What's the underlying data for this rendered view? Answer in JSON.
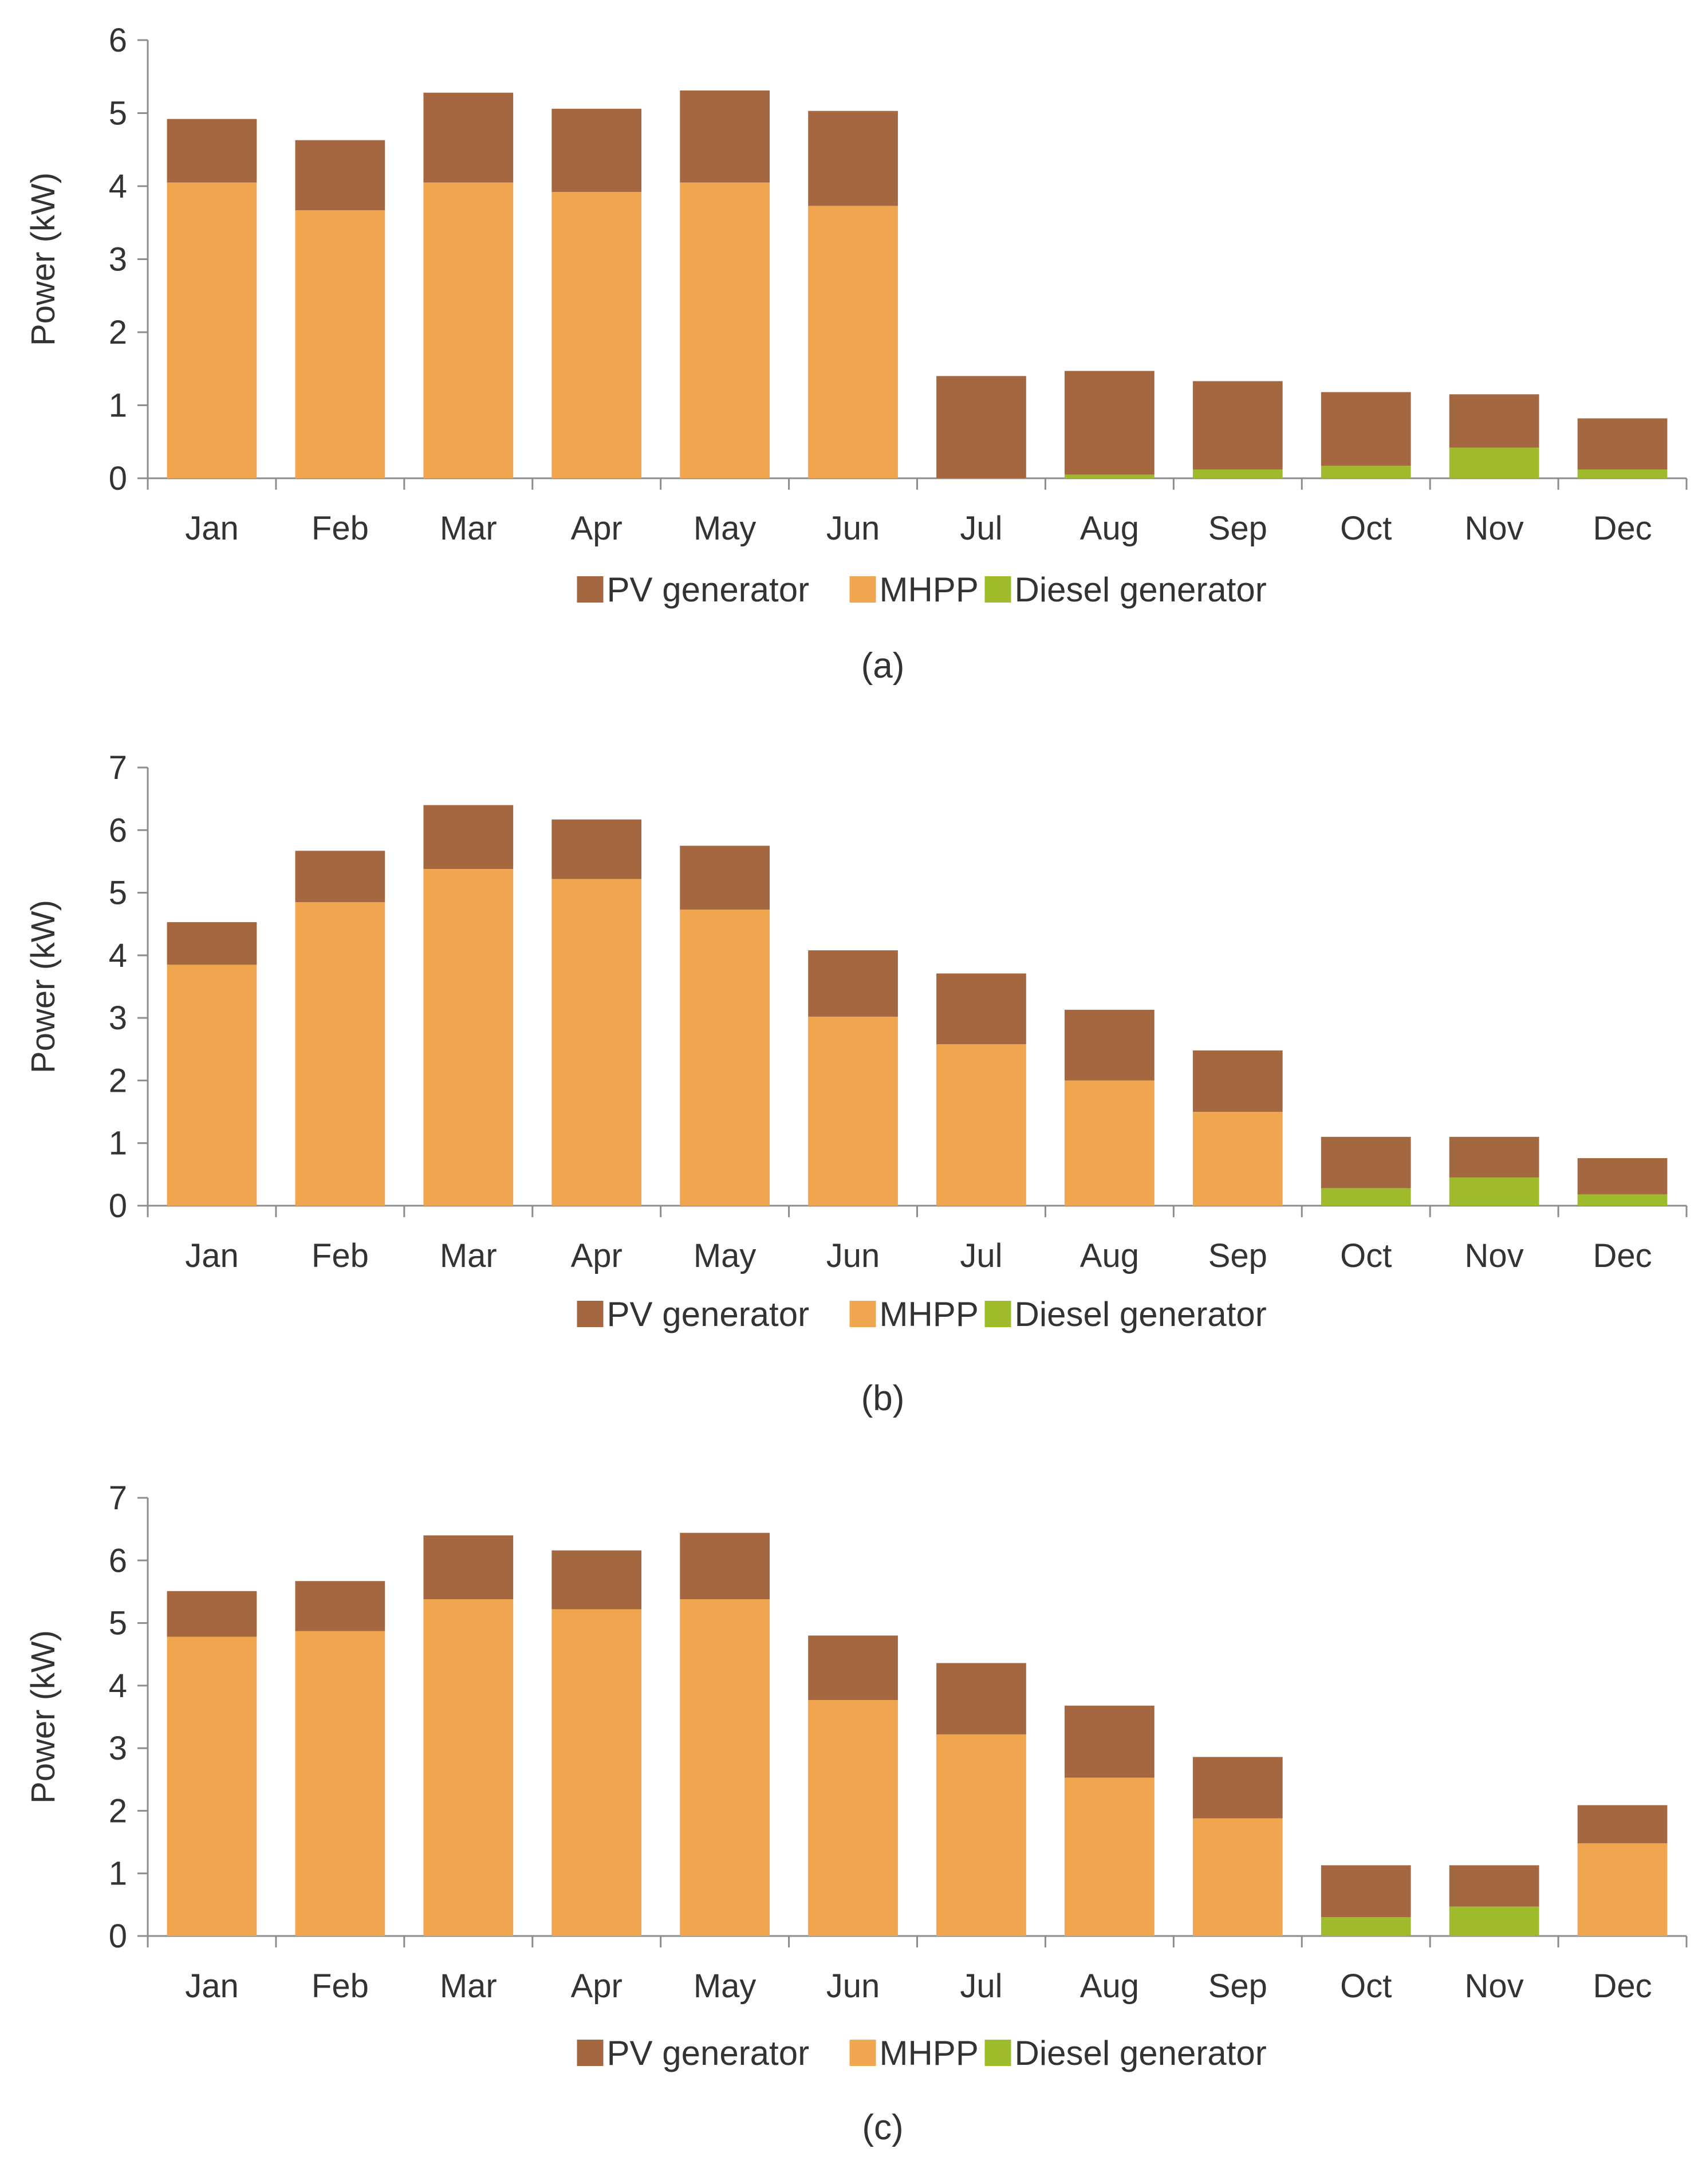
{
  "colors": {
    "pv": "#a5673f",
    "mhpp": "#f0a54f",
    "diesel": "#9dbb2a",
    "axis": "#8c8c8c"
  },
  "chart_data": [
    {
      "type": "bar",
      "stacked": true,
      "caption": "(a)",
      "title": "",
      "xlabel": "",
      "ylabel": "Power (kW)",
      "ylim": [
        0,
        6
      ],
      "yticks": [
        0,
        1,
        2,
        3,
        4,
        5,
        6
      ],
      "categories": [
        "Jan",
        "Feb",
        "Mar",
        "Apr",
        "May",
        "Jun",
        "Jul",
        "Aug",
        "Sep",
        "Oct",
        "Nov",
        "Dec"
      ],
      "legend_position": "bottom",
      "series": [
        {
          "name": "Diesel generator",
          "color_key": "diesel",
          "values": [
            0,
            0,
            0,
            0,
            0,
            0,
            0,
            0.05,
            0.12,
            0.17,
            0.42,
            0.12
          ]
        },
        {
          "name": "MHPP",
          "color_key": "mhpp",
          "values": [
            4.05,
            3.67,
            4.05,
            3.92,
            4.05,
            3.73,
            0,
            0,
            0,
            0,
            0,
            0
          ]
        },
        {
          "name": "PV generator",
          "color_key": "pv",
          "values": [
            0.87,
            0.96,
            1.23,
            1.14,
            1.26,
            1.3,
            1.4,
            1.42,
            1.21,
            1.01,
            0.73,
            0.7
          ]
        }
      ],
      "legend_order": [
        "PV generator",
        "MHPP",
        "Diesel generator"
      ]
    },
    {
      "type": "bar",
      "stacked": true,
      "caption": "(b)",
      "title": "",
      "xlabel": "",
      "ylabel": "Power (kW)",
      "ylim": [
        0,
        7
      ],
      "yticks": [
        0,
        1,
        2,
        3,
        4,
        5,
        6,
        7
      ],
      "categories": [
        "Jan",
        "Feb",
        "Mar",
        "Apr",
        "May",
        "Jun",
        "Jul",
        "Aug",
        "Sep",
        "Oct",
        "Nov",
        "Dec"
      ],
      "legend_position": "bottom",
      "series": [
        {
          "name": "Diesel generator",
          "color_key": "diesel",
          "values": [
            0,
            0,
            0,
            0,
            0,
            0,
            0,
            0,
            0,
            0.28,
            0.45,
            0.18
          ]
        },
        {
          "name": "MHPP",
          "color_key": "mhpp",
          "values": [
            3.85,
            4.85,
            5.38,
            5.22,
            4.73,
            3.02,
            2.58,
            2.0,
            1.5,
            0,
            0,
            0
          ]
        },
        {
          "name": "PV generator",
          "color_key": "pv",
          "values": [
            0.68,
            0.82,
            1.02,
            0.95,
            1.02,
            1.06,
            1.13,
            1.13,
            0.98,
            0.82,
            0.65,
            0.58
          ]
        }
      ],
      "legend_order": [
        "PV generator",
        "MHPP",
        "Diesel generator"
      ]
    },
    {
      "type": "bar",
      "stacked": true,
      "caption": "(c)",
      "title": "",
      "xlabel": "",
      "ylabel": "Power (kW)",
      "ylim": [
        0,
        7
      ],
      "yticks": [
        0,
        1,
        2,
        3,
        4,
        5,
        6,
        7
      ],
      "categories": [
        "Jan",
        "Feb",
        "Mar",
        "Apr",
        "May",
        "Jun",
        "Jul",
        "Aug",
        "Sep",
        "Oct",
        "Nov",
        "Dec"
      ],
      "legend_position": "bottom",
      "series": [
        {
          "name": "Diesel generator",
          "color_key": "diesel",
          "values": [
            0,
            0,
            0,
            0,
            0,
            0,
            0,
            0,
            0,
            0.3,
            0.47,
            0
          ]
        },
        {
          "name": "MHPP",
          "color_key": "mhpp",
          "values": [
            4.78,
            4.87,
            5.38,
            5.22,
            5.38,
            3.77,
            3.22,
            2.53,
            1.88,
            0,
            0,
            1.48
          ]
        },
        {
          "name": "PV generator",
          "color_key": "pv",
          "values": [
            0.73,
            0.8,
            1.02,
            0.94,
            1.06,
            1.03,
            1.14,
            1.15,
            0.98,
            0.83,
            0.66,
            0.61
          ]
        }
      ],
      "legend_order": [
        "PV generator",
        "MHPP",
        "Diesel generator"
      ]
    }
  ]
}
